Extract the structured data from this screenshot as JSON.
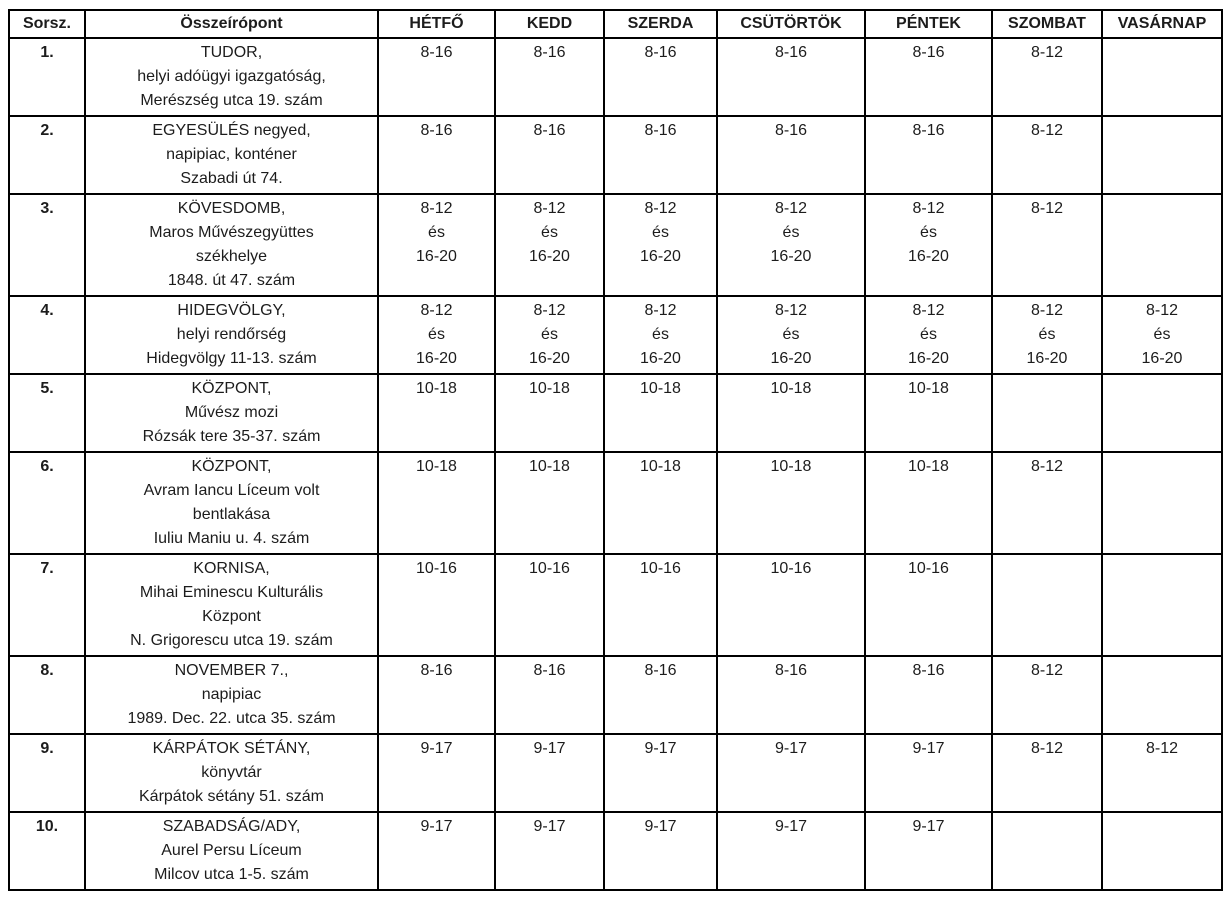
{
  "header": {
    "sorsz": "Sorsz.",
    "point": "Összeírópont",
    "days": [
      "HÉTFŐ",
      "KEDD",
      "SZERDA",
      "CSÜTÖRTÖK",
      "PÉNTEK",
      "SZOMBAT",
      "VASÁRNAP"
    ]
  },
  "rows": [
    {
      "num": "1.",
      "point": "TUDOR,\nhelyi adóügyi igazgatóság,\nMerészség utca 19. szám",
      "days": [
        "8-16",
        "8-16",
        "8-16",
        "8-16",
        "8-16",
        "8-12",
        ""
      ]
    },
    {
      "num": "2.",
      "point": "EGYESÜLÉS negyed,\nnapipiac, konténer\nSzabadi út 74.",
      "days": [
        "8-16",
        "8-16",
        "8-16",
        "8-16",
        "8-16",
        "8-12",
        ""
      ]
    },
    {
      "num": "3.",
      "point": "KÖVESDOMB,\nMaros Művészegyüttes\nszékhelye\n1848. út 47. szám",
      "days": [
        "8-12\nés\n16-20",
        "8-12\nés\n16-20",
        "8-12\nés\n16-20",
        "8-12\nés\n16-20",
        "8-12\nés\n16-20",
        "8-12",
        ""
      ]
    },
    {
      "num": "4.",
      "point": "HIDEGVÖLGY,\nhelyi rendőrség\nHidegvölgy 11-13. szám",
      "days": [
        "8-12\nés\n16-20",
        "8-12\nés\n16-20",
        "8-12\nés\n16-20",
        "8-12\nés\n16-20",
        "8-12\nés\n16-20",
        "8-12\nés\n16-20",
        "8-12\nés\n16-20"
      ]
    },
    {
      "num": "5.",
      "point": "KÖZPONT,\nMűvész mozi\nRózsák tere 35-37. szám",
      "days": [
        "10-18",
        "10-18",
        "10-18",
        "10-18",
        "10-18",
        "",
        ""
      ]
    },
    {
      "num": "6.",
      "point": "KÖZPONT,\nAvram Iancu Líceum volt\nbentlakása\nIuliu Maniu u. 4. szám",
      "days": [
        "10-18",
        "10-18",
        "10-18",
        "10-18",
        "10-18",
        "8-12",
        ""
      ]
    },
    {
      "num": "7.",
      "point": "KORNISA,\nMihai Eminescu Kulturális\nKözpont\nN. Grigorescu utca 19. szám",
      "days": [
        "10-16",
        "10-16",
        "10-16",
        "10-16",
        "10-16",
        "",
        ""
      ]
    },
    {
      "num": "8.",
      "point": "NOVEMBER 7.,\nnapipiac\n1989. Dec. 22. utca 35. szám",
      "days": [
        "8-16",
        "8-16",
        "8-16",
        "8-16",
        "8-16",
        "8-12",
        ""
      ]
    },
    {
      "num": "9.",
      "point": "KÁRPÁTOK SÉTÁNY,\nkönyvtár\nKárpátok sétány 51. szám",
      "days": [
        "9-17",
        "9-17",
        "9-17",
        "9-17",
        "9-17",
        "8-12",
        "8-12"
      ]
    },
    {
      "num": "10.",
      "point": "SZABADSÁG/ADY,\nAurel Persu Líceum\nMilcov utca 1-5. szám",
      "days": [
        "9-17",
        "9-17",
        "9-17",
        "9-17",
        "9-17",
        "",
        ""
      ]
    }
  ],
  "colors": {
    "border": "#000000",
    "text": "#1c1c1c",
    "background": "#ffffff"
  }
}
